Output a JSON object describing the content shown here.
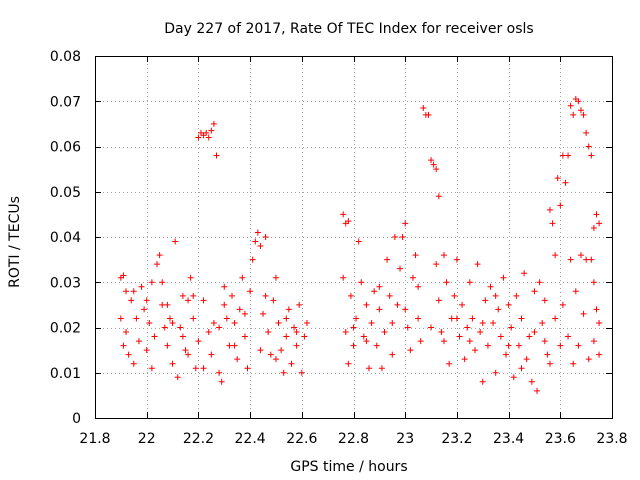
{
  "chart_data": {
    "type": "scatter",
    "title": "Day 227 of 2017, Rate Of TEC Index for receiver osls",
    "xlabel": "GPS time / hours",
    "ylabel": "ROTI / TECUs",
    "xlim": [
      21.8,
      23.8
    ],
    "ylim": [
      0,
      0.08
    ],
    "x_ticks": [
      21.8,
      22,
      22.2,
      22.4,
      22.6,
      22.8,
      23,
      23.2,
      23.4,
      23.6,
      23.8
    ],
    "x_tick_labels": [
      "21.8",
      "22",
      "22.2",
      "22.4",
      "22.6",
      "22.8",
      "23",
      "23.2",
      "23.4",
      "23.6",
      "23.8"
    ],
    "y_ticks": [
      0,
      0.01,
      0.02,
      0.03,
      0.04,
      0.05,
      0.06,
      0.07,
      0.08
    ],
    "y_tick_labels": [
      "0",
      "0.01",
      "0.02",
      "0.03",
      "0.04",
      "0.05",
      "0.06",
      "0.07",
      "0.08"
    ],
    "grid": true,
    "marker": "+",
    "color": "#ff0000",
    "series": [
      {
        "name": "ROTI",
        "points": [
          [
            21.9,
            0.031
          ],
          [
            21.91,
            0.0315
          ],
          [
            21.92,
            0.028
          ],
          [
            21.9,
            0.022
          ],
          [
            21.91,
            0.016
          ],
          [
            21.92,
            0.019
          ],
          [
            21.93,
            0.014
          ],
          [
            21.94,
            0.026
          ],
          [
            21.95,
            0.028
          ],
          [
            21.96,
            0.022
          ],
          [
            21.97,
            0.017
          ],
          [
            21.98,
            0.029
          ],
          [
            21.99,
            0.024
          ],
          [
            22.0,
            0.015
          ],
          [
            22.01,
            0.021
          ],
          [
            22.02,
            0.03
          ],
          [
            22.03,
            0.018
          ],
          [
            22.04,
            0.034
          ],
          [
            22.05,
            0.036
          ],
          [
            22.06,
            0.025
          ],
          [
            22.07,
            0.02
          ],
          [
            22.08,
            0.016
          ],
          [
            22.09,
            0.022
          ],
          [
            22.1,
            0.012
          ],
          [
            22.11,
            0.039
          ],
          [
            22.12,
            0.009
          ],
          [
            22.13,
            0.02
          ],
          [
            22.14,
            0.027
          ],
          [
            22.15,
            0.015
          ],
          [
            22.16,
            0.026
          ],
          [
            22.17,
            0.031
          ],
          [
            22.18,
            0.022
          ],
          [
            22.19,
            0.011
          ],
          [
            22.2,
            0.062
          ],
          [
            22.21,
            0.063
          ],
          [
            22.22,
            0.0625
          ],
          [
            22.23,
            0.063
          ],
          [
            22.24,
            0.062
          ],
          [
            22.25,
            0.0635
          ],
          [
            22.26,
            0.065
          ],
          [
            22.27,
            0.058
          ],
          [
            22.2,
            0.017
          ],
          [
            22.22,
            0.026
          ],
          [
            22.24,
            0.019
          ],
          [
            22.25,
            0.014
          ],
          [
            22.26,
            0.021
          ],
          [
            22.28,
            0.01
          ],
          [
            22.29,
            0.008
          ],
          [
            22.3,
            0.029
          ],
          [
            22.31,
            0.022
          ],
          [
            22.32,
            0.016
          ],
          [
            22.33,
            0.027
          ],
          [
            22.34,
            0.021
          ],
          [
            22.35,
            0.013
          ],
          [
            22.36,
            0.024
          ],
          [
            22.37,
            0.031
          ],
          [
            22.38,
            0.018
          ],
          [
            22.39,
            0.011
          ],
          [
            22.4,
            0.028
          ],
          [
            22.41,
            0.035
          ],
          [
            22.42,
            0.039
          ],
          [
            22.43,
            0.041
          ],
          [
            22.44,
            0.038
          ],
          [
            22.45,
            0.023
          ],
          [
            22.46,
            0.04
          ],
          [
            22.47,
            0.019
          ],
          [
            22.48,
            0.014
          ],
          [
            22.49,
            0.026
          ],
          [
            22.5,
            0.031
          ],
          [
            22.51,
            0.021
          ],
          [
            22.52,
            0.015
          ],
          [
            22.53,
            0.01
          ],
          [
            22.54,
            0.018
          ],
          [
            22.55,
            0.024
          ],
          [
            22.56,
            0.012
          ],
          [
            22.57,
            0.02
          ],
          [
            22.58,
            0.016
          ],
          [
            22.59,
            0.025
          ],
          [
            22.6,
            0.01
          ],
          [
            22.61,
            0.018
          ],
          [
            22.62,
            0.021
          ],
          [
            22.0,
            0.026
          ],
          [
            22.02,
            0.011
          ],
          [
            22.06,
            0.03
          ],
          [
            22.1,
            0.021
          ],
          [
            22.14,
            0.018
          ],
          [
            22.18,
            0.027
          ],
          [
            22.22,
            0.011
          ],
          [
            22.3,
            0.025
          ],
          [
            22.34,
            0.016
          ],
          [
            22.38,
            0.023
          ],
          [
            22.46,
            0.027
          ],
          [
            22.5,
            0.013
          ],
          [
            22.54,
            0.022
          ],
          [
            22.58,
            0.019
          ],
          [
            21.95,
            0.012
          ],
          [
            22.08,
            0.025
          ],
          [
            22.16,
            0.014
          ],
          [
            22.28,
            0.02
          ],
          [
            22.44,
            0.015
          ],
          [
            22.76,
            0.045
          ],
          [
            22.77,
            0.043
          ],
          [
            22.78,
            0.0435
          ],
          [
            22.76,
            0.031
          ],
          [
            22.77,
            0.019
          ],
          [
            22.78,
            0.012
          ],
          [
            22.79,
            0.027
          ],
          [
            22.8,
            0.016
          ],
          [
            22.81,
            0.022
          ],
          [
            22.82,
            0.039
          ],
          [
            22.83,
            0.03
          ],
          [
            22.84,
            0.018
          ],
          [
            22.85,
            0.025
          ],
          [
            22.86,
            0.011
          ],
          [
            22.87,
            0.021
          ],
          [
            22.88,
            0.028
          ],
          [
            22.89,
            0.016
          ],
          [
            22.9,
            0.024
          ],
          [
            22.91,
            0.011
          ],
          [
            22.92,
            0.019
          ],
          [
            22.93,
            0.035
          ],
          [
            22.94,
            0.027
          ],
          [
            22.95,
            0.021
          ],
          [
            22.96,
            0.04
          ],
          [
            22.97,
            0.025
          ],
          [
            22.98,
            0.033
          ],
          [
            22.99,
            0.04
          ],
          [
            23.0,
            0.043
          ],
          [
            23.01,
            0.02
          ],
          [
            23.02,
            0.015
          ],
          [
            23.03,
            0.031
          ],
          [
            23.04,
            0.036
          ],
          [
            23.05,
            0.022
          ],
          [
            23.06,
            0.017
          ],
          [
            23.07,
            0.0685
          ],
          [
            23.08,
            0.067
          ],
          [
            23.09,
            0.067
          ],
          [
            23.1,
            0.057
          ],
          [
            23.11,
            0.056
          ],
          [
            23.12,
            0.055
          ],
          [
            23.13,
            0.049
          ],
          [
            23.12,
            0.034
          ],
          [
            23.13,
            0.026
          ],
          [
            23.14,
            0.019
          ],
          [
            23.15,
            0.036
          ],
          [
            23.16,
            0.03
          ],
          [
            23.17,
            0.012
          ],
          [
            23.18,
            0.022
          ],
          [
            23.19,
            0.027
          ],
          [
            23.2,
            0.035
          ],
          [
            23.21,
            0.018
          ],
          [
            23.22,
            0.025
          ],
          [
            23.23,
            0.013
          ],
          [
            23.24,
            0.02
          ],
          [
            23.25,
            0.03
          ],
          [
            23.26,
            0.022
          ],
          [
            23.27,
            0.015
          ],
          [
            23.28,
            0.034
          ],
          [
            23.29,
            0.019
          ],
          [
            23.3,
            0.008
          ],
          [
            23.31,
            0.026
          ],
          [
            23.32,
            0.016
          ],
          [
            23.33,
            0.029
          ],
          [
            23.34,
            0.021
          ],
          [
            23.35,
            0.01
          ],
          [
            23.36,
            0.024
          ],
          [
            23.37,
            0.018
          ],
          [
            23.38,
            0.031
          ],
          [
            23.39,
            0.014
          ],
          [
            23.4,
            0.025
          ],
          [
            23.41,
            0.02
          ],
          [
            23.42,
            0.009
          ],
          [
            23.43,
            0.027
          ],
          [
            23.44,
            0.016
          ],
          [
            23.45,
            0.022
          ],
          [
            23.46,
            0.032
          ],
          [
            23.47,
            0.013
          ],
          [
            23.48,
            0.018
          ],
          [
            23.49,
            0.008
          ],
          [
            23.5,
            0.028
          ],
          [
            23.51,
            0.006
          ],
          [
            23.52,
            0.03
          ],
          [
            23.53,
            0.021
          ],
          [
            23.54,
            0.026
          ],
          [
            23.55,
            0.014
          ],
          [
            23.56,
            0.046
          ],
          [
            23.57,
            0.043
          ],
          [
            23.58,
            0.036
          ],
          [
            23.59,
            0.053
          ],
          [
            23.6,
            0.047
          ],
          [
            23.61,
            0.058
          ],
          [
            23.62,
            0.052
          ],
          [
            23.63,
            0.058
          ],
          [
            23.64,
            0.069
          ],
          [
            23.65,
            0.067
          ],
          [
            23.66,
            0.0705
          ],
          [
            23.67,
            0.07
          ],
          [
            23.68,
            0.068
          ],
          [
            23.69,
            0.067
          ],
          [
            23.7,
            0.063
          ],
          [
            23.71,
            0.06
          ],
          [
            23.72,
            0.058
          ],
          [
            23.73,
            0.042
          ],
          [
            23.74,
            0.045
          ],
          [
            23.75,
            0.043
          ],
          [
            23.64,
            0.035
          ],
          [
            23.66,
            0.028
          ],
          [
            23.68,
            0.036
          ],
          [
            23.7,
            0.035
          ],
          [
            23.72,
            0.035
          ],
          [
            23.73,
            0.03
          ],
          [
            23.74,
            0.024
          ],
          [
            23.75,
            0.021
          ],
          [
            23.63,
            0.018
          ],
          [
            23.65,
            0.012
          ],
          [
            23.67,
            0.016
          ],
          [
            23.69,
            0.023
          ],
          [
            23.71,
            0.013
          ],
          [
            23.73,
            0.017
          ],
          [
            23.75,
            0.014
          ],
          [
            23.61,
            0.025
          ],
          [
            23.6,
            0.016
          ],
          [
            23.58,
            0.022
          ],
          [
            23.56,
            0.012
          ],
          [
            23.54,
            0.017
          ],
          [
            22.8,
            0.02
          ],
          [
            22.85,
            0.017
          ],
          [
            22.9,
            0.029
          ],
          [
            22.95,
            0.014
          ],
          [
            23.0,
            0.024
          ],
          [
            23.05,
            0.029
          ],
          [
            23.1,
            0.02
          ],
          [
            23.15,
            0.017
          ],
          [
            23.2,
            0.022
          ],
          [
            23.25,
            0.017
          ],
          [
            23.3,
            0.021
          ],
          [
            23.35,
            0.027
          ],
          [
            23.4,
            0.016
          ],
          [
            23.45,
            0.011
          ],
          [
            23.5,
            0.019
          ]
        ]
      }
    ]
  }
}
